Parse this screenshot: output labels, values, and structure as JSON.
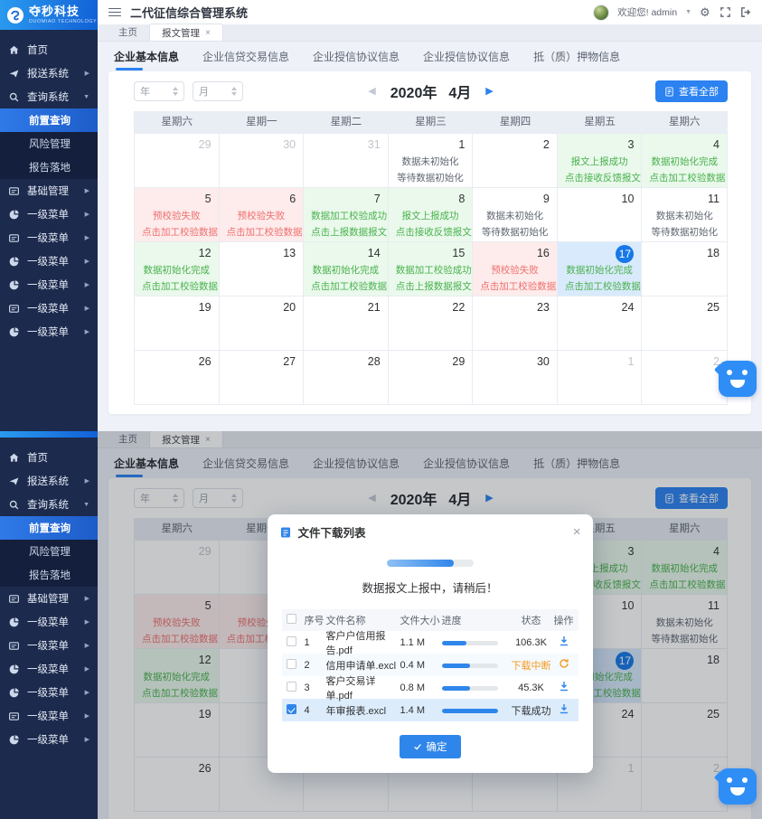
{
  "app": {
    "title": "二代征信综合管理系统",
    "welcome": "欢迎您! admin"
  },
  "logo": {
    "name": "夺秒科技",
    "subtitle": "DUOMIAO TECHNOLOGY"
  },
  "colors": {
    "accent": "#2b82f0",
    "sidebar": "#1c2a4d",
    "green": "#49b14d",
    "red": "#ee6f6f",
    "orange": "#f59a23",
    "today": "#1778e8"
  },
  "sidebar": {
    "items": [
      {
        "label": "首页",
        "icon": "home",
        "arrow": ""
      },
      {
        "label": "报送系统",
        "icon": "send",
        "arrow": "right"
      },
      {
        "label": "查询系统",
        "icon": "search",
        "arrow": "down"
      },
      {
        "label": "前置查询",
        "sub": true,
        "active": true
      },
      {
        "label": "风险管理",
        "sub": true
      },
      {
        "label": "报告落地",
        "sub": true
      },
      {
        "label": "基础管理",
        "icon": "card",
        "arrow": "right"
      },
      {
        "label": "一级菜单",
        "icon": "pie",
        "arrow": "right"
      },
      {
        "label": "一级菜单",
        "icon": "card",
        "arrow": "right"
      },
      {
        "label": "一级菜单",
        "icon": "pie",
        "arrow": "right"
      },
      {
        "label": "一级菜单",
        "icon": "pie",
        "arrow": "right"
      },
      {
        "label": "一级菜单",
        "icon": "card",
        "arrow": "right"
      },
      {
        "label": "一级菜单",
        "icon": "pie",
        "arrow": "right"
      }
    ]
  },
  "window_tabs": {
    "home": "主页",
    "report": "报文管理"
  },
  "content_tabs": [
    {
      "label": "企业基本信息",
      "active": true
    },
    {
      "label": "企业信贷交易信息"
    },
    {
      "label": "企业授信协议信息"
    },
    {
      "label": "企业授信协议信息"
    },
    {
      "label": "抵（质）押物信息"
    }
  ],
  "toolbar": {
    "year_placeholder": "年",
    "month_placeholder": "月",
    "year_label": "2020年",
    "month_label": "4月",
    "view_all_label": "查看全部"
  },
  "calendar": {
    "weekdays": [
      "星期六",
      "星期一",
      "星期二",
      "星期三",
      "星期四",
      "星期五",
      "星期六"
    ],
    "cells": [
      {
        "d": "29",
        "om": true
      },
      {
        "d": "30",
        "om": true
      },
      {
        "d": "31",
        "om": true
      },
      {
        "d": "1",
        "l1": "数据未初始化",
        "l2": "等待数据初始化"
      },
      {
        "d": "2"
      },
      {
        "d": "3",
        "type": "green",
        "l1": "报文上报成功",
        "l2": "点击接收反馈报文"
      },
      {
        "d": "4",
        "type": "green",
        "l1": "数据初始化完成",
        "l2": "点击加工校验数据"
      },
      {
        "d": "5",
        "type": "red",
        "l1": "预校验失败",
        "l2": "点击加工校验数据"
      },
      {
        "d": "6",
        "type": "red",
        "l1": "预校验失败",
        "l2": "点击加工校验数据"
      },
      {
        "d": "7",
        "type": "green",
        "l1": "数据加工校验成功",
        "l2": "点击上报数据报文"
      },
      {
        "d": "8",
        "type": "green",
        "l1": "报文上报成功",
        "l2": "点击接收反馈报文"
      },
      {
        "d": "9",
        "l1": "数据未初始化",
        "l2": "等待数据初始化"
      },
      {
        "d": "10"
      },
      {
        "d": "11",
        "l1": "数据未初始化",
        "l2": "等待数据初始化"
      },
      {
        "d": "12",
        "type": "green",
        "l1": "数据初始化完成",
        "l2": "点击加工校验数据"
      },
      {
        "d": "13"
      },
      {
        "d": "14",
        "type": "green",
        "l1": "数据初始化完成",
        "l2": "点击加工校验数据"
      },
      {
        "d": "15",
        "type": "green",
        "l1": "数据加工校验成功",
        "l2": "点击上报数据报文"
      },
      {
        "d": "16",
        "type": "red",
        "l1": "预校验失败",
        "l2": "点击加工校验数据"
      },
      {
        "d": "17",
        "type": "blue",
        "today": true,
        "l1": "数据初始化完成",
        "l2": "点击加工校验数据"
      },
      {
        "d": "18"
      },
      {
        "d": "19"
      },
      {
        "d": "20"
      },
      {
        "d": "21"
      },
      {
        "d": "22"
      },
      {
        "d": "23"
      },
      {
        "d": "24"
      },
      {
        "d": "25"
      },
      {
        "d": "26"
      },
      {
        "d": "27"
      },
      {
        "d": "28"
      },
      {
        "d": "29"
      },
      {
        "d": "30"
      },
      {
        "d": "1",
        "om": true
      },
      {
        "d": "2",
        "om": true
      }
    ]
  },
  "download_modal": {
    "title": "文件下载列表",
    "progress_pct": 78,
    "message": "数据报文上报中，请稍后！",
    "columns": [
      "序号",
      "文件名称",
      "文件大小",
      "进度",
      "状态",
      "操作"
    ],
    "rows": [
      {
        "idx": "1",
        "name": "客户户信用报告.pdf",
        "size": "1.1 M",
        "pct": 45,
        "status": "106.3K",
        "status_color": "",
        "op": "download",
        "checked": false,
        "stripe": false
      },
      {
        "idx": "2",
        "name": "信用申请单.excl",
        "size": "0.4 M",
        "pct": 50,
        "status": "下载中断",
        "status_color": "#f59a23",
        "op": "refresh",
        "checked": false,
        "stripe": true
      },
      {
        "idx": "3",
        "name": "客户交易详单.pdf",
        "size": "0.8 M",
        "pct": 50,
        "status": "45.3K",
        "status_color": "",
        "op": "download",
        "checked": false,
        "stripe": false
      },
      {
        "idx": "4",
        "name": "年审报表.excl",
        "size": "1.4 M",
        "pct": 100,
        "status": "下载成功",
        "status_color": "",
        "op": "download",
        "checked": true,
        "selected": true
      }
    ],
    "confirm_label": "确定"
  }
}
